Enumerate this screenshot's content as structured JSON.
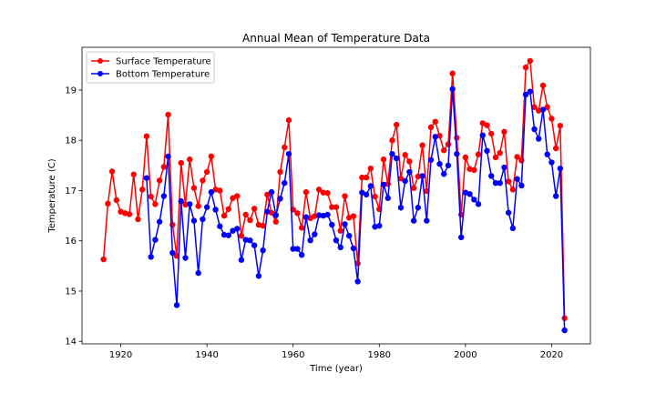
{
  "chart_data": {
    "type": "line",
    "title": "Annual Mean of Temperature Data",
    "xlabel": "Time (year)",
    "ylabel": "Temperature (C)",
    "xlim": [
      1911,
      2029
    ],
    "ylim": [
      13.95,
      19.85
    ],
    "xticks": [
      1920,
      1940,
      1960,
      1980,
      2000,
      2020
    ],
    "yticks": [
      14,
      15,
      16,
      17,
      18,
      19
    ],
    "grid": false,
    "legend_position": "upper-left",
    "series": [
      {
        "name": "Surface Temperature",
        "color": "#ff0000",
        "x": [
          1916,
          1917,
          1918,
          1919,
          1920,
          1921,
          1922,
          1923,
          1924,
          1925,
          1926,
          1927,
          1928,
          1929,
          1930,
          1931,
          1932,
          1933,
          1934,
          1935,
          1936,
          1937,
          1938,
          1939,
          1940,
          1941,
          1942,
          1943,
          1944,
          1945,
          1946,
          1947,
          1948,
          1949,
          1950,
          1951,
          1952,
          1953,
          1954,
          1955,
          1956,
          1957,
          1958,
          1959,
          1960,
          1961,
          1962,
          1963,
          1964,
          1965,
          1966,
          1967,
          1968,
          1969,
          1970,
          1971,
          1972,
          1973,
          1974,
          1975,
          1976,
          1977,
          1978,
          1979,
          1980,
          1981,
          1982,
          1983,
          1984,
          1985,
          1986,
          1987,
          1988,
          1989,
          1990,
          1991,
          1992,
          1993,
          1994,
          1995,
          1996,
          1997,
          1998,
          1999,
          2000,
          2001,
          2002,
          2003,
          2004,
          2005,
          2006,
          2007,
          2008,
          2009,
          2010,
          2011,
          2012,
          2013,
          2014,
          2015,
          2016,
          2017,
          2018,
          2019,
          2020,
          2021,
          2022,
          2023
        ],
        "values": [
          15.63,
          16.74,
          17.38,
          16.81,
          16.58,
          16.55,
          16.53,
          17.32,
          16.43,
          17.02,
          18.08,
          16.88,
          16.73,
          17.2,
          17.47,
          18.51,
          16.32,
          15.7,
          17.55,
          16.72,
          17.62,
          17.05,
          16.69,
          17.2,
          17.37,
          17.68,
          17.02,
          17.0,
          16.5,
          16.63,
          16.85,
          16.89,
          16.1,
          16.52,
          16.41,
          16.64,
          16.32,
          16.3,
          16.92,
          16.56,
          16.38,
          17.37,
          17.86,
          18.4,
          16.62,
          16.55,
          16.26,
          16.97,
          16.45,
          16.49,
          17.02,
          16.96,
          16.95,
          16.67,
          16.67,
          16.2,
          16.89,
          16.46,
          16.49,
          15.55,
          17.26,
          17.26,
          17.44,
          16.88,
          16.63,
          17.62,
          17.13,
          18.0,
          18.31,
          17.24,
          17.71,
          17.58,
          17.05,
          17.28,
          17.9,
          16.99,
          18.26,
          18.37,
          18.09,
          17.8,
          17.92,
          19.33,
          18.05,
          16.52,
          17.66,
          17.43,
          17.41,
          17.72,
          18.34,
          18.3,
          18.13,
          17.66,
          17.75,
          18.17,
          17.18,
          17.02,
          17.67,
          17.6,
          19.45,
          19.58,
          18.66,
          18.59,
          19.09,
          18.66,
          18.43,
          17.84,
          18.29,
          14.46
        ]
      },
      {
        "name": "Bottom Temperature",
        "color": "#0000ff",
        "x": [
          1926,
          1927,
          1928,
          1929,
          1930,
          1931,
          1932,
          1933,
          1934,
          1935,
          1936,
          1937,
          1938,
          1939,
          1940,
          1941,
          1942,
          1943,
          1944,
          1945,
          1946,
          1947,
          1948,
          1949,
          1950,
          1951,
          1952,
          1953,
          1954,
          1955,
          1956,
          1957,
          1958,
          1959,
          1960,
          1961,
          1962,
          1963,
          1964,
          1965,
          1966,
          1967,
          1968,
          1969,
          1970,
          1971,
          1972,
          1973,
          1974,
          1975,
          1976,
          1977,
          1978,
          1979,
          1980,
          1981,
          1982,
          1983,
          1984,
          1985,
          1986,
          1987,
          1988,
          1989,
          1990,
          1991,
          1992,
          1993,
          1994,
          1995,
          1996,
          1997,
          1998,
          1999,
          2000,
          2001,
          2002,
          2003,
          2004,
          2005,
          2006,
          2007,
          2008,
          2009,
          2010,
          2011,
          2012,
          2013,
          2014,
          2015,
          2016,
          2017,
          2018,
          2019,
          2020,
          2021,
          2022,
          2023
        ],
        "values": [
          17.25,
          15.68,
          16.02,
          16.38,
          16.89,
          17.68,
          15.76,
          14.72,
          16.79,
          15.66,
          16.73,
          16.4,
          15.36,
          16.43,
          16.67,
          16.97,
          16.62,
          16.29,
          16.12,
          16.11,
          16.2,
          16.24,
          15.62,
          16.02,
          16.01,
          15.91,
          15.3,
          15.81,
          16.58,
          16.97,
          16.51,
          16.84,
          17.15,
          17.73,
          15.84,
          15.84,
          15.72,
          16.47,
          16.01,
          16.13,
          16.51,
          16.5,
          16.52,
          16.32,
          16.01,
          15.87,
          16.33,
          16.1,
          15.85,
          15.19,
          16.96,
          16.92,
          17.09,
          16.28,
          16.3,
          17.12,
          16.85,
          17.73,
          17.64,
          16.66,
          17.19,
          17.37,
          16.4,
          16.66,
          17.29,
          16.4,
          17.61,
          18.07,
          17.53,
          17.33,
          17.5,
          19.02,
          17.73,
          16.07,
          16.96,
          16.93,
          16.82,
          16.73,
          18.1,
          17.79,
          17.29,
          17.15,
          17.15,
          17.46,
          16.56,
          16.25,
          17.23,
          17.1,
          18.91,
          18.97,
          18.22,
          18.03,
          18.61,
          17.72,
          17.56,
          16.89,
          17.44,
          14.22
        ]
      }
    ]
  }
}
